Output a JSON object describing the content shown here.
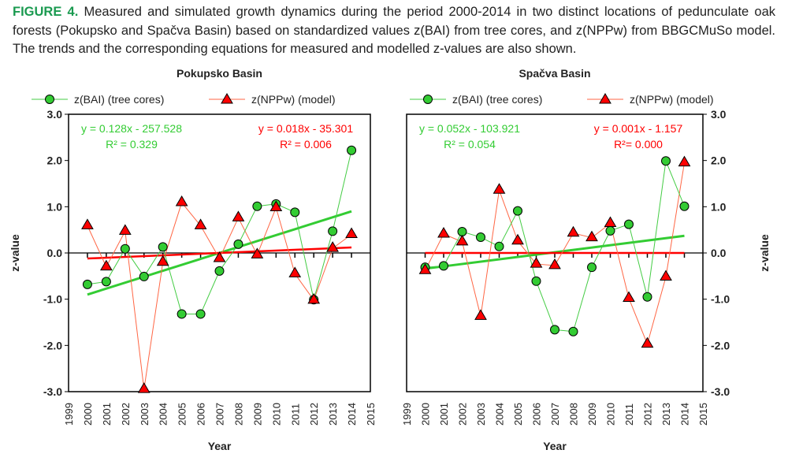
{
  "caption": {
    "label": "FIGURE 4.",
    "text": "Measured and simulated growth dynamics during the period 2000-2014 in two distinct locations of pedunculate oak forests (Pokupsko and Spačva Basin) based on standardized values z(BAI) from tree cores, and z(NPPw) from BBGCMuSo model. The trends and the corresponding equations for measured and modelled z-values are also shown."
  },
  "colors": {
    "bai": "#33cc33",
    "npp": "#ff0000",
    "bai_line": "#44cc44",
    "npp_line": "#ff6644"
  },
  "chart_data": [
    {
      "type": "line",
      "title": "Pokupsko Basin",
      "xlabel": "Year",
      "ylabel": "z-value",
      "ylim": [
        -3,
        3
      ],
      "xlim": [
        1999,
        2015
      ],
      "yticks": [
        "3.0",
        "2.0",
        "1.0",
        "0.0",
        "-1.0",
        "-2.0",
        "-3.0"
      ],
      "y_axis_side": "left",
      "x": [
        2000,
        2001,
        2002,
        2003,
        2004,
        2005,
        2006,
        2007,
        2008,
        2009,
        2010,
        2011,
        2012,
        2013,
        2014
      ],
      "series": [
        {
          "name": "z(BAI) (tree cores)",
          "values": [
            -0.68,
            -0.62,
            0.09,
            -0.51,
            0.13,
            -1.32,
            -1.32,
            -0.39,
            0.19,
            1.01,
            1.06,
            0.88,
            -1.01,
            0.47,
            2.22
          ],
          "trend": [
            -0.9,
            0.9
          ],
          "equation": "y = 0.128x - 257.528",
          "r2": "R² = 0.329"
        },
        {
          "name": "z(NPPw) (model)",
          "values": [
            0.59,
            -0.3,
            0.47,
            -2.95,
            -0.2,
            1.09,
            0.59,
            -0.12,
            0.76,
            -0.04,
            0.98,
            -0.45,
            -1.02,
            0.1,
            0.4
          ],
          "trend": [
            -0.12,
            0.12
          ],
          "equation": "y = 0.018x - 35.301",
          "r2": "R² = 0.006"
        }
      ]
    },
    {
      "type": "line",
      "title": "Spačva Basin",
      "xlabel": "Year",
      "ylabel": "z-value",
      "ylim": [
        -3,
        3
      ],
      "xlim": [
        1999,
        2015
      ],
      "yticks": [
        "3.0",
        "2.0",
        "1.0",
        "0.0",
        "-1.0",
        "-2.0",
        "-3.0"
      ],
      "y_axis_side": "right",
      "x": [
        2000,
        2001,
        2002,
        2003,
        2004,
        2005,
        2006,
        2007,
        2008,
        2009,
        2010,
        2011,
        2012,
        2013,
        2014
      ],
      "series": [
        {
          "name": "z(BAI) (tree cores)",
          "values": [
            -0.31,
            -0.28,
            0.46,
            0.34,
            0.14,
            0.91,
            -0.61,
            -1.66,
            -1.7,
            -0.31,
            0.48,
            0.62,
            -0.95,
            1.99,
            1.01
          ],
          "trend": [
            -0.34,
            0.37
          ],
          "equation": "y = 0.052x - 103.921",
          "r2": "R² = 0.054"
        },
        {
          "name": "z(NPPw) (model)",
          "values": [
            -0.38,
            0.41,
            0.24,
            -1.37,
            1.36,
            0.26,
            -0.24,
            -0.27,
            0.43,
            0.33,
            0.64,
            -0.98,
            -1.97,
            -0.52,
            1.95
          ],
          "trend": [
            0.0,
            0.0
          ],
          "equation": "y = 0.001x - 1.157",
          "r2": "R²= 0.000"
        }
      ]
    }
  ]
}
